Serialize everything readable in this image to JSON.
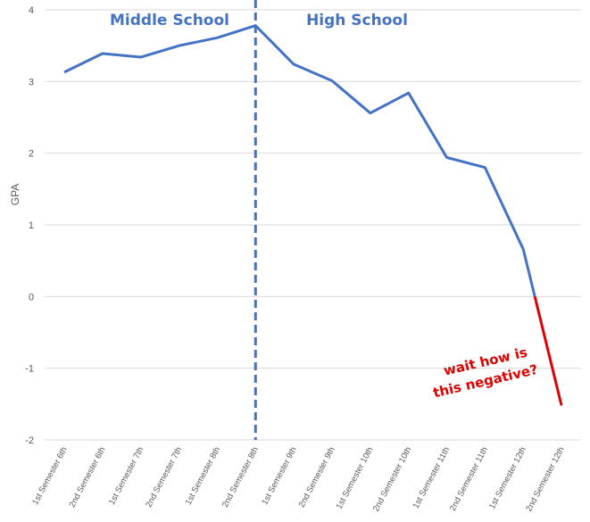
{
  "chart_data": {
    "type": "line",
    "y_label": "GPA",
    "categories": [
      "1st Semester 6th",
      "2nd Semester 6th",
      "1st Semester 7th",
      "2nd Semester 7th",
      "1st Semester 8th",
      "2nd Semester 8th",
      "1st Semester 9th",
      "2nd Semester 9th",
      "1st Semester 10th",
      "2nd Semester 10th",
      "1st Semester 11th",
      "2nd Semester 11th",
      "1st Semester 12th",
      "2nd Semester 12th"
    ],
    "values": [
      3.13,
      3.39,
      3.34,
      3.5,
      3.61,
      3.78,
      3.24,
      3.01,
      2.56,
      2.84,
      1.94,
      1.8,
      0.66,
      -1.52
    ],
    "color": "#4472c4",
    "negative_color": "#e00000",
    "ylim": [
      -2,
      4
    ],
    "yticks": [
      4,
      3,
      2,
      1,
      0,
      -1,
      -2
    ],
    "grid": true,
    "divider_at": "2nd Semester 8th",
    "annotations": [
      {
        "text": "Middle School",
        "color": "#4472c4"
      },
      {
        "text": "High School",
        "color": "#4472c4"
      },
      {
        "lines": [
          "wait how is",
          "this negative?"
        ],
        "color": "#e00000"
      }
    ]
  }
}
